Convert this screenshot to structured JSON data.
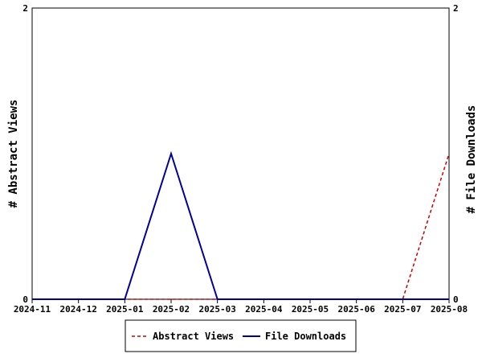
{
  "chart_data": {
    "type": "line",
    "categories": [
      "2024-11",
      "2024-12",
      "2025-01",
      "2025-02",
      "2025-03",
      "2025-04",
      "2025-05",
      "2025-06",
      "2025-07",
      "2025-08"
    ],
    "series": [
      {
        "name": "Abstract Views",
        "axis": "left",
        "style": "dashed",
        "color": "#cc0000",
        "values": [
          0,
          0,
          0,
          0,
          0,
          0,
          0,
          0,
          0,
          1
        ]
      },
      {
        "name": "File Downloads",
        "axis": "right",
        "style": "solid",
        "color": "#000099",
        "values": [
          0,
          0,
          0,
          1,
          0,
          0,
          0,
          0,
          0,
          0
        ]
      }
    ],
    "ylabel_left": "# Abstract Views",
    "ylabel_right": "# File Downloads",
    "ylim_left": [
      0,
      2
    ],
    "ylim_right": [
      0,
      2
    ],
    "yticks_left": [
      "0",
      "2"
    ],
    "yticks_right": [
      "0",
      "2"
    ],
    "grid": false,
    "legend_position": "bottom-center"
  }
}
